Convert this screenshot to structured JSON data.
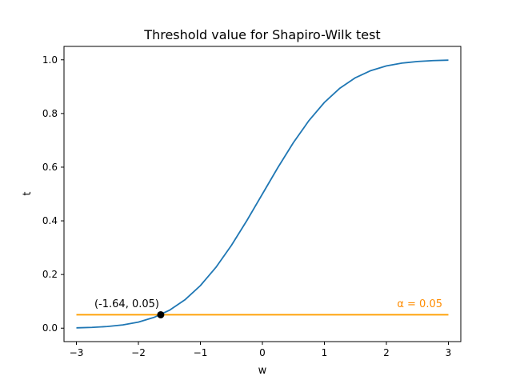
{
  "chart_data": {
    "type": "line",
    "title": "Threshold value for Shapiro-Wilk test",
    "xlabel": "w",
    "ylabel": "t",
    "xlim": [
      -3.2,
      3.2
    ],
    "ylim": [
      -0.05,
      1.05
    ],
    "xticks": [
      {
        "value": -3,
        "label": "−3"
      },
      {
        "value": -2,
        "label": "−2"
      },
      {
        "value": -1,
        "label": "−1"
      },
      {
        "value": 0,
        "label": "0"
      },
      {
        "value": 1,
        "label": "1"
      },
      {
        "value": 2,
        "label": "2"
      },
      {
        "value": 3,
        "label": "3"
      }
    ],
    "yticks": [
      {
        "value": 0.0,
        "label": "0.0"
      },
      {
        "value": 0.2,
        "label": "0.2"
      },
      {
        "value": 0.4,
        "label": "0.4"
      },
      {
        "value": 0.6,
        "label": "0.6"
      },
      {
        "value": 0.8,
        "label": "0.8"
      },
      {
        "value": 1.0,
        "label": "1.0"
      }
    ],
    "grid": false,
    "series": [
      {
        "color": "#1f77b4",
        "x": [
          -3,
          -2.75,
          -2.5,
          -2.25,
          -2,
          -1.75,
          -1.5,
          -1.25,
          -1,
          -0.75,
          -0.5,
          -0.25,
          0,
          0.25,
          0.5,
          0.75,
          1,
          1.25,
          1.5,
          1.75,
          2,
          2.25,
          2.5,
          2.75,
          3
        ],
        "y": [
          0.0013,
          0.003,
          0.0062,
          0.0122,
          0.0228,
          0.0401,
          0.0668,
          0.1056,
          0.1587,
          0.2266,
          0.3085,
          0.4013,
          0.5,
          0.5987,
          0.6915,
          0.7734,
          0.8413,
          0.8944,
          0.9332,
          0.9599,
          0.9772,
          0.9878,
          0.9938,
          0.997,
          0.9987
        ]
      },
      {
        "color": "#ff9f00",
        "x": [
          -3,
          3
        ],
        "y": [
          0.05,
          0.05
        ]
      }
    ],
    "point": {
      "x": -1.64,
      "y": 0.05,
      "color": "#000000"
    },
    "annotations": {
      "point_label": "(-1.64, 0.05)",
      "alpha_label": "α = 0.05",
      "alpha_color": "#ff8c00"
    }
  }
}
